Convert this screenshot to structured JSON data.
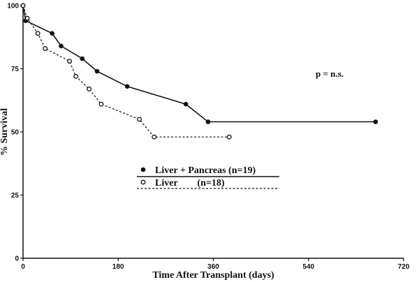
{
  "chart_data": {
    "type": "line",
    "xlabel": "Time After Transplant (days)",
    "ylabel": "% Survival",
    "xlim": [
      0,
      720
    ],
    "ylim": [
      0,
      100
    ],
    "xticks": [
      0,
      180,
      360,
      540,
      720
    ],
    "yticks": [
      0,
      25,
      50,
      75,
      100
    ],
    "annotation": "p = n.s.",
    "series": [
      {
        "name": "Liver + Pancreas (n=19)",
        "style": "solid",
        "marker": "filled-circle",
        "color": "#111111",
        "x": [
          0,
          5,
          55,
          72,
          112,
          140,
          197,
          308,
          350,
          667
        ],
        "y": [
          100,
          94,
          89,
          84,
          79,
          74,
          68,
          61,
          54,
          54
        ]
      },
      {
        "name": "Liver        (n=18)",
        "style": "dashed",
        "marker": "open-circle",
        "color": "#111111",
        "x": [
          0,
          8,
          28,
          42,
          88,
          100,
          125,
          148,
          220,
          248,
          390
        ],
        "y": [
          100,
          95,
          89,
          83,
          78,
          72,
          67,
          61,
          55,
          48,
          48
        ]
      }
    ]
  }
}
